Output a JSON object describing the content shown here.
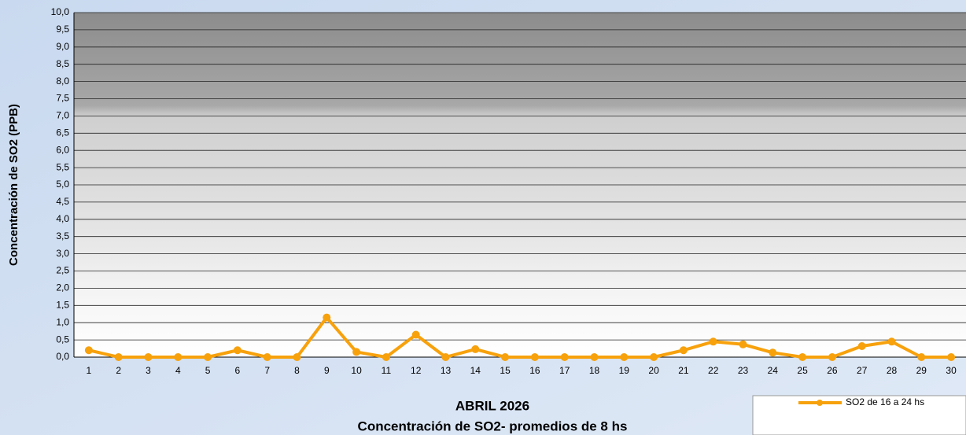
{
  "chart_data": {
    "type": "line",
    "title": "ABRIL 2026",
    "subtitle": "Concentración de SO2- promedios de 8 hs",
    "ylabel": "Concentración de SO2 (PPB)",
    "categories": [
      "1",
      "2",
      "3",
      "4",
      "5",
      "6",
      "7",
      "8",
      "9",
      "10",
      "11",
      "12",
      "13",
      "14",
      "15",
      "16",
      "17",
      "18",
      "19",
      "20",
      "21",
      "22",
      "23",
      "24",
      "25",
      "26",
      "27",
      "28",
      "29",
      "30"
    ],
    "series": [
      {
        "name": "SO2 de 16 a 24 hs",
        "color": "#f7a10c",
        "values": [
          0.2,
          0,
          0,
          0,
          0,
          0.2,
          0,
          0,
          1.15,
          0.15,
          0,
          0.65,
          0,
          0.23,
          0,
          0,
          0,
          0,
          0,
          0,
          0.2,
          0.45,
          0.37,
          0.13,
          0,
          0,
          0.32,
          0.45,
          0,
          0
        ]
      }
    ],
    "ylim": [
      0,
      10
    ],
    "yticks": [
      {
        "value": 0,
        "label": "0,0"
      },
      {
        "value": 0.5,
        "label": "0,5"
      },
      {
        "value": 1,
        "label": "1,0"
      },
      {
        "value": 1.5,
        "label": "1,5"
      },
      {
        "value": 2,
        "label": "2,0"
      },
      {
        "value": 2.5,
        "label": "2,5"
      },
      {
        "value": 3,
        "label": "3,0"
      },
      {
        "value": 3.5,
        "label": "3,5"
      },
      {
        "value": 4,
        "label": "4,0"
      },
      {
        "value": 4.5,
        "label": "4,5"
      },
      {
        "value": 5,
        "label": "5,0"
      },
      {
        "value": 5.5,
        "label": "5,5"
      },
      {
        "value": 6,
        "label": "6,0"
      },
      {
        "value": 6.5,
        "label": "6,5"
      },
      {
        "value": 7,
        "label": "7,0"
      },
      {
        "value": 7.5,
        "label": "7,5"
      },
      {
        "value": 8,
        "label": "8,0"
      },
      {
        "value": 8.5,
        "label": "8,5"
      },
      {
        "value": 9,
        "label": "9,0"
      },
      {
        "value": 9.5,
        "label": "9,5"
      },
      {
        "value": 10,
        "label": "10,0"
      }
    ],
    "grid": true,
    "legend": "bottom-right"
  }
}
